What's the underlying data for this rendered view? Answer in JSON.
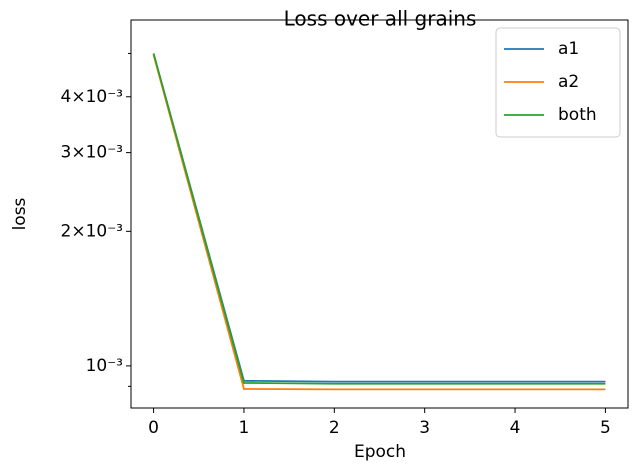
{
  "chart_data": {
    "type": "line",
    "title": "Loss over all grains",
    "xlabel": "Epoch",
    "ylabel": "loss",
    "x": [
      0,
      1,
      2,
      3,
      4,
      5
    ],
    "series": [
      {
        "name": "a1",
        "color": "#1f77b4",
        "values": [
          0.00499,
          0.000926,
          0.000922,
          0.000922,
          0.000922,
          0.000922
        ]
      },
      {
        "name": "a2",
        "color": "#ff7f0e",
        "values": [
          0.00496,
          0.000888,
          0.000886,
          0.000886,
          0.000886,
          0.000886
        ]
      },
      {
        "name": "both",
        "color": "#2ca02c",
        "values": [
          0.005,
          0.000916,
          0.000912,
          0.000912,
          0.000912,
          0.000912
        ]
      }
    ],
    "xlim": [
      -0.25,
      5.25
    ],
    "xticks": [
      0,
      1,
      2,
      3,
      4,
      5
    ],
    "ylim": [
      0.000805,
      0.00594
    ],
    "ylog": true,
    "yticks": [
      {
        "value": 0.001,
        "label": "10⁻³"
      },
      {
        "value": 0.002,
        "label": "2×10⁻³"
      },
      {
        "value": 0.003,
        "label": "3×10⁻³"
      },
      {
        "value": 0.004,
        "label": "4×10⁻³"
      }
    ],
    "yminor_ticks": [
      0.0009,
      0.005
    ],
    "legend": "upper right",
    "grid": false
  }
}
